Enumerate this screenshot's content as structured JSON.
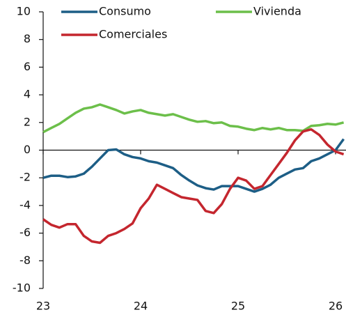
{
  "chart_data": {
    "type": "line",
    "x": [
      23,
      23.083,
      23.167,
      23.25,
      23.333,
      23.417,
      23.5,
      23.583,
      23.667,
      23.75,
      23.833,
      23.917,
      24,
      24.083,
      24.167,
      24.25,
      24.333,
      24.417,
      24.5,
      24.583,
      24.667,
      24.75,
      24.833,
      24.917,
      25,
      25.083,
      25.167,
      25.25,
      25.333,
      25.417,
      25.5,
      25.583,
      25.667,
      25.75,
      25.833,
      25.917,
      26,
      26.083
    ],
    "series": [
      {
        "name": "Consumo",
        "color": "#1d5e86",
        "values": [
          -2.0,
          -1.85,
          -1.85,
          -1.95,
          -1.9,
          -1.7,
          -1.2,
          -0.6,
          0.0,
          0.05,
          -0.3,
          -0.5,
          -0.6,
          -0.8,
          -0.9,
          -1.1,
          -1.3,
          -1.8,
          -2.2,
          -2.55,
          -2.75,
          -2.85,
          -2.6,
          -2.6,
          -2.6,
          -2.8,
          -3.0,
          -2.8,
          -2.5,
          -2.0,
          -1.7,
          -1.4,
          -1.3,
          -0.8,
          -0.6,
          -0.3,
          0.0,
          0.8
        ]
      },
      {
        "name": "Vivienda",
        "color": "#6cbf4a",
        "values": [
          1.3,
          1.6,
          1.9,
          2.3,
          2.7,
          3.0,
          3.1,
          3.3,
          3.1,
          2.9,
          2.65,
          2.8,
          2.9,
          2.7,
          2.6,
          2.5,
          2.6,
          2.4,
          2.2,
          2.05,
          2.1,
          1.95,
          2.0,
          1.75,
          1.7,
          1.55,
          1.45,
          1.6,
          1.5,
          1.6,
          1.45,
          1.45,
          1.4,
          1.75,
          1.8,
          1.9,
          1.85,
          2.0
        ]
      },
      {
        "name": "Comerciales",
        "color": "#c4262e",
        "values": [
          -5.0,
          -5.4,
          -5.6,
          -5.35,
          -5.35,
          -6.2,
          -6.6,
          -6.7,
          -6.2,
          -6.0,
          -5.7,
          -5.3,
          -4.2,
          -3.5,
          -2.5,
          -2.8,
          -3.1,
          -3.4,
          -3.5,
          -3.6,
          -4.4,
          -4.55,
          -3.9,
          -2.8,
          -2.0,
          -2.2,
          -2.8,
          -2.6,
          -1.8,
          -1.0,
          -0.2,
          0.7,
          1.35,
          1.5,
          1.1,
          0.4,
          -0.1,
          -0.3
        ]
      }
    ],
    "xlim": [
      23,
      26.1
    ],
    "xticks": [
      23,
      24,
      25,
      26
    ],
    "ylim": [
      -10,
      10
    ],
    "yticks": [
      -10,
      -8,
      -6,
      -4,
      -2,
      0,
      2,
      4,
      6,
      8,
      10
    ]
  }
}
